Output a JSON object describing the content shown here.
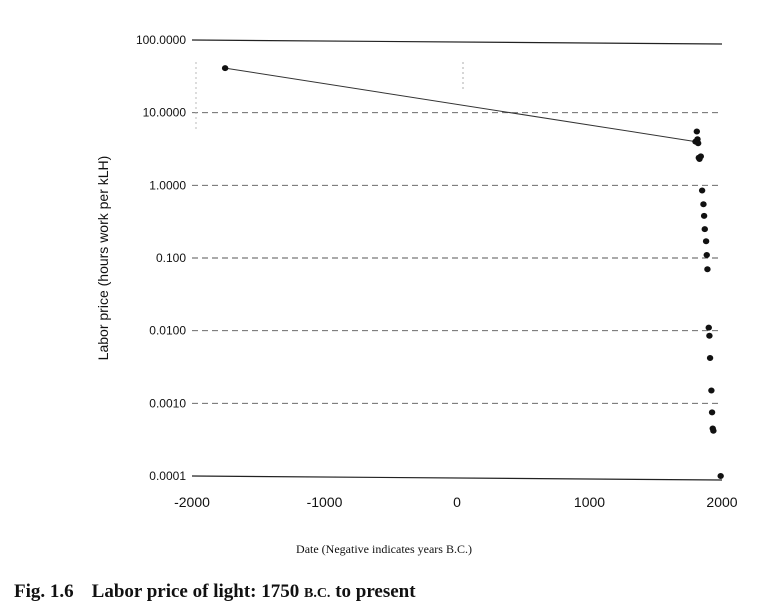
{
  "chart_data": {
    "type": "scatter",
    "y_scale": "log",
    "xlabel": "Date (Negative indicates years B.C.)",
    "ylabel": "Labor price (hours work per kLH)",
    "xlim": [
      -2000,
      2000
    ],
    "ylim": [
      0.0001,
      100
    ],
    "x_ticks": [
      "-2000",
      "-1000",
      "0",
      "1000",
      "2000"
    ],
    "x_tick_values": [
      -2000,
      -1000,
      0,
      1000,
      2000
    ],
    "y_ticks": [
      "100.0000",
      "10.0000",
      "1.0000",
      "0.100",
      "0.0100",
      "0.0010",
      "0.0001"
    ],
    "y_tick_values": [
      100,
      10,
      1,
      0.1,
      0.01,
      0.001,
      0.0001
    ],
    "grid": true,
    "points": [
      {
        "x": -1750,
        "y": 41
      },
      {
        "x": 1800,
        "y": 4.0
      },
      {
        "x": 1810,
        "y": 5.5
      },
      {
        "x": 1815,
        "y": 4.3
      },
      {
        "x": 1820,
        "y": 3.8
      },
      {
        "x": 1825,
        "y": 2.4
      },
      {
        "x": 1830,
        "y": 2.3
      },
      {
        "x": 1840,
        "y": 2.5
      },
      {
        "x": 1850,
        "y": 0.85
      },
      {
        "x": 1860,
        "y": 0.55
      },
      {
        "x": 1865,
        "y": 0.38
      },
      {
        "x": 1870,
        "y": 0.25
      },
      {
        "x": 1880,
        "y": 0.17
      },
      {
        "x": 1885,
        "y": 0.11
      },
      {
        "x": 1890,
        "y": 0.07
      },
      {
        "x": 1900,
        "y": 0.011
      },
      {
        "x": 1905,
        "y": 0.0085
      },
      {
        "x": 1910,
        "y": 0.0042
      },
      {
        "x": 1920,
        "y": 0.0015
      },
      {
        "x": 1925,
        "y": 0.00075
      },
      {
        "x": 1930,
        "y": 0.00045
      },
      {
        "x": 1935,
        "y": 0.00042
      },
      {
        "x": 1990,
        "y": 0.0001
      }
    ],
    "connected_segment": [
      [
        -1750,
        41
      ],
      [
        1800,
        4.0
      ]
    ]
  },
  "caption": {
    "figure_number": "Fig. 1.6",
    "title_main": "Labor price of light: 1750 ",
    "title_era": "B.C.",
    "title_end": " to present"
  }
}
